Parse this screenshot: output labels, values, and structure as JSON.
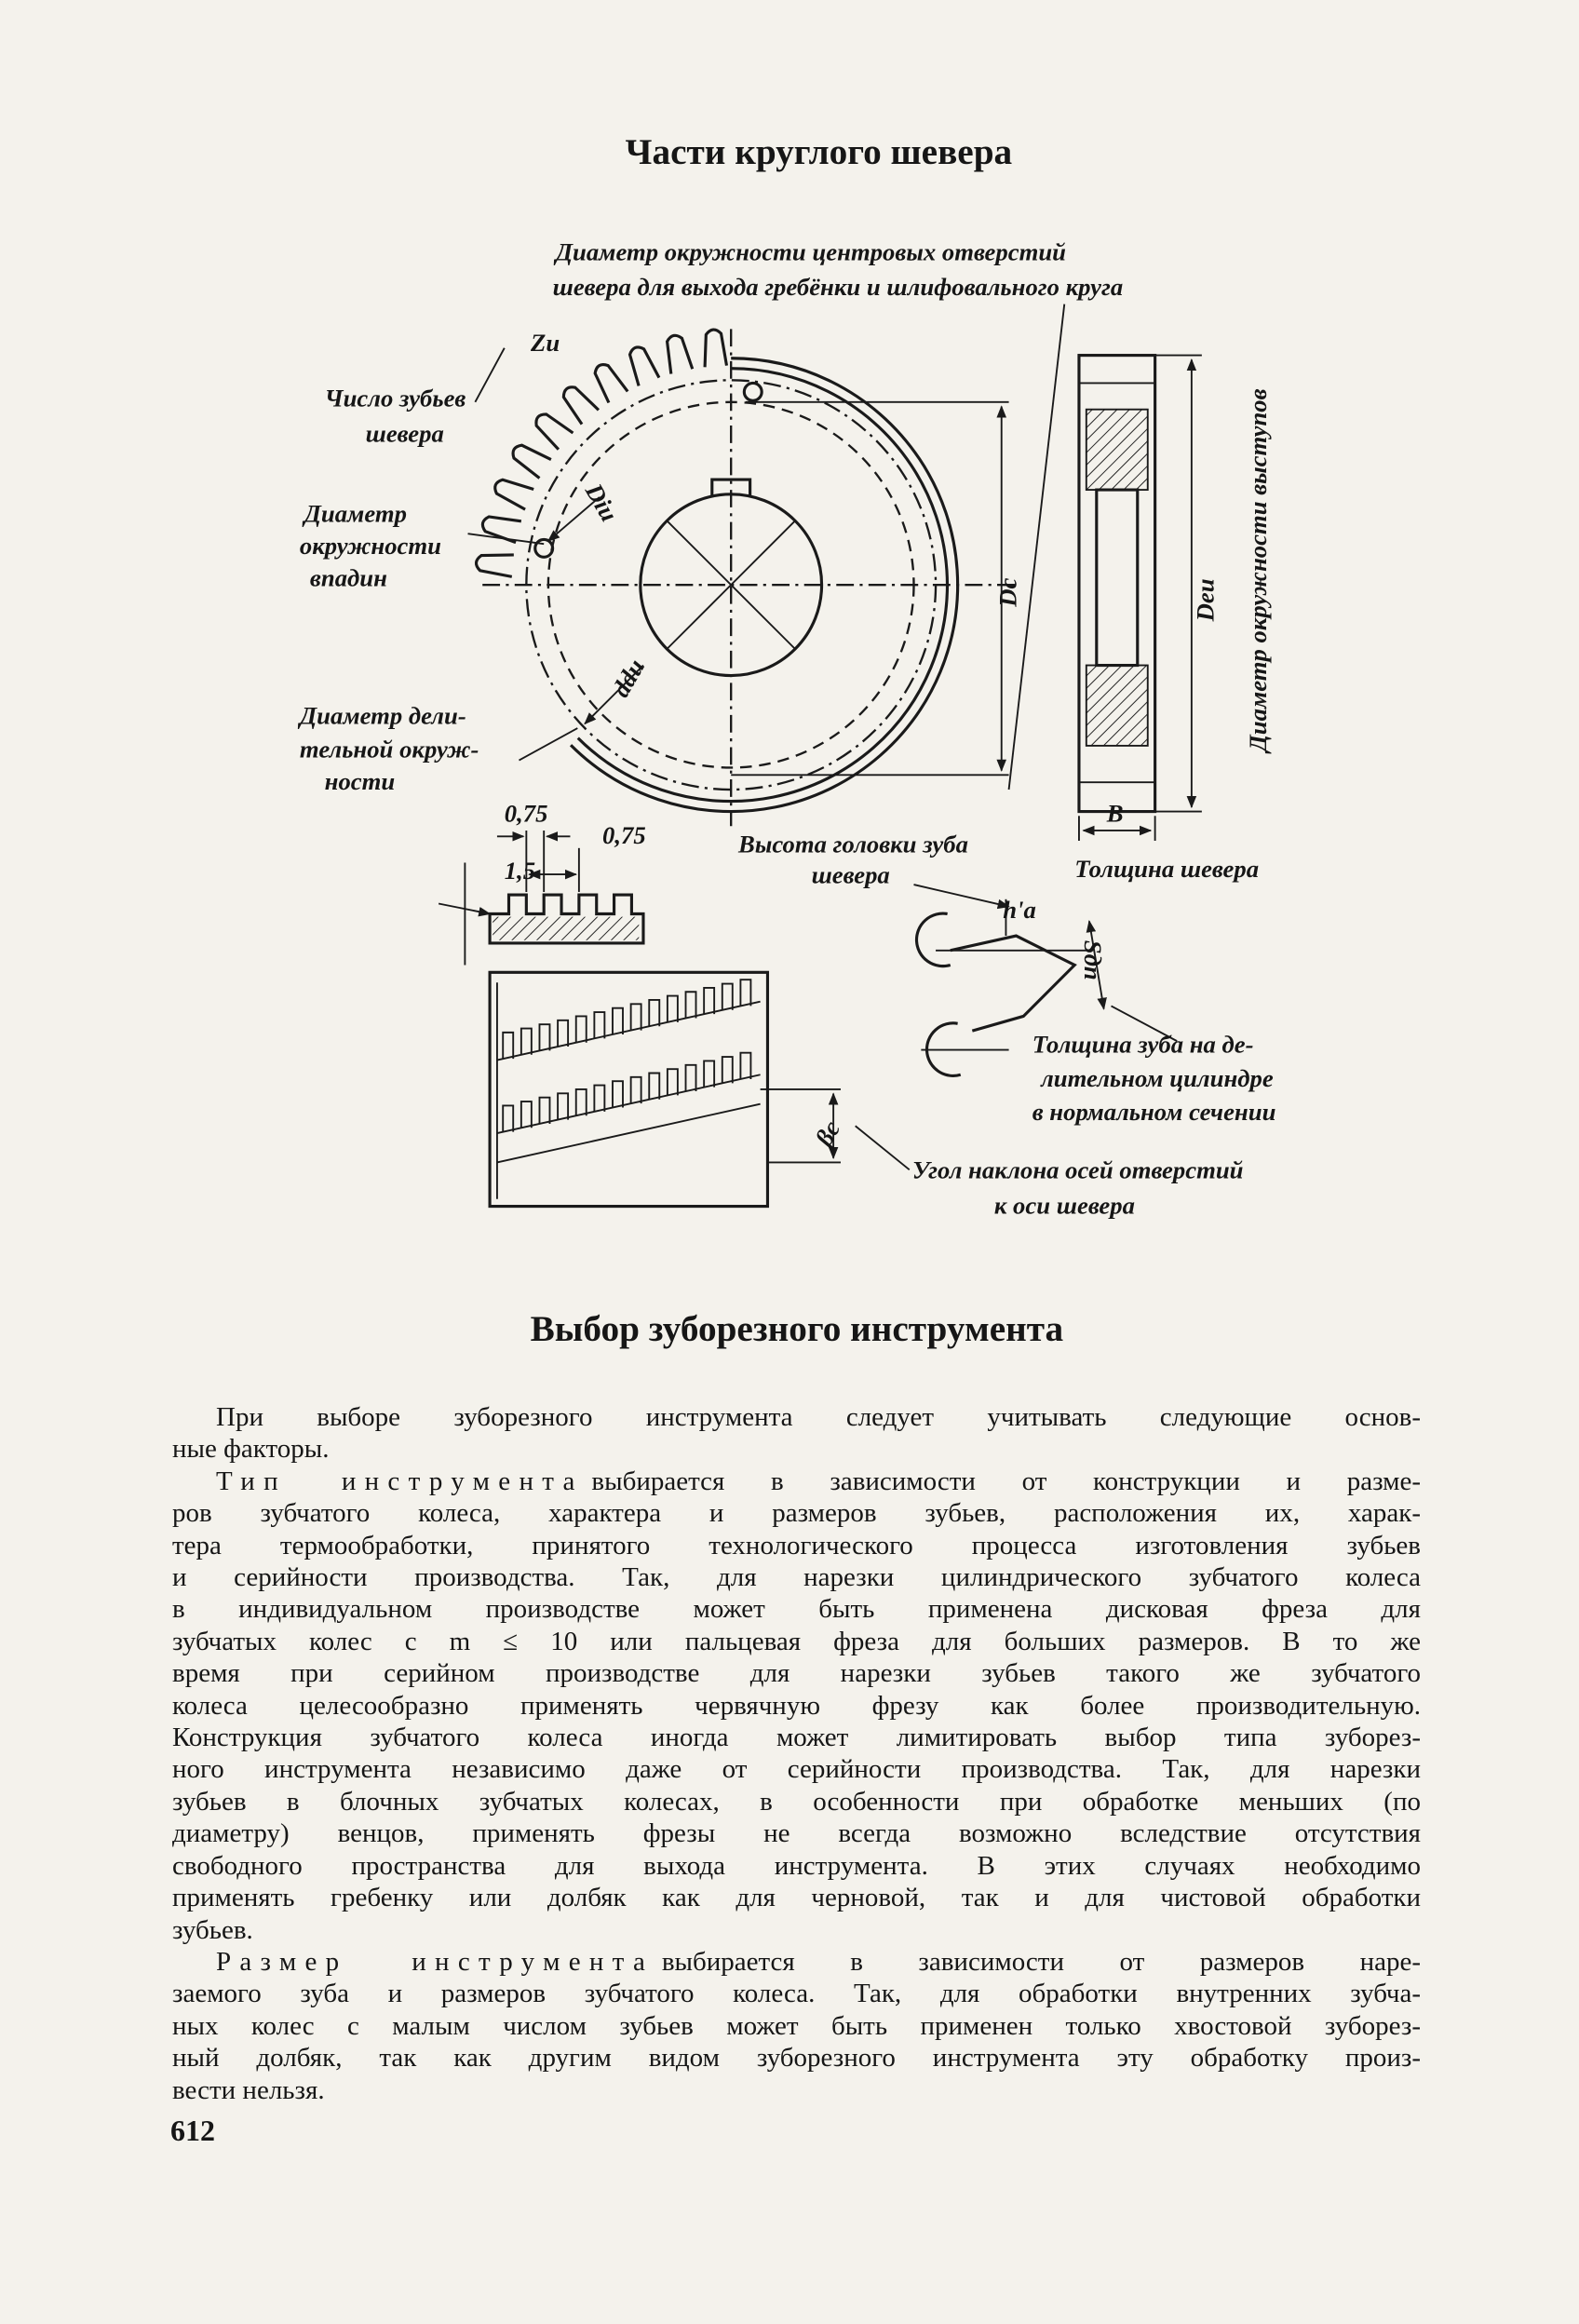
{
  "title": "Части круглого шевера",
  "figure": {
    "labels": [
      "Диаметр окружности центровых отверстий",
      "шевера для выхода гребёнки и шлифовального круга",
      "Zu",
      "Число зубьев",
      "шевера",
      "Диаметр",
      "окружности",
      "впадин",
      "Diu",
      "Dc",
      "Deu",
      "Диаметр окружности выступов",
      "ddu",
      "Диаметр дели-",
      "тельной окруж-",
      "ности",
      "0,75",
      "0,75",
      "1,5",
      "Высота головки зуба",
      "шевера",
      "B",
      "Толщина шевера",
      "h'a",
      "Sдn",
      "Толщина зуба на де-",
      "лительном цилиндре",
      "в нормальном сечении",
      "βc",
      "Угол наклона осей отверстий",
      "к оси шевера"
    ]
  },
  "section": {
    "heading": "Выбор зуборезного инструмента",
    "paragraphs": [
      {
        "lines": [
          "При выборе зуборезного инструмента следует учитывать следующие основ-",
          "ные факторы."
        ]
      },
      {
        "lead": "Тип инструмента",
        "lines": [
          "выбирается в зависимости от конструкции и разме-",
          "ров зубчатого колеса, характера и размеров зубьев, расположения их, харак-",
          "тера термообработки, принятого технологического процесса изготовления зубьев",
          "и серийности производства. Так, для нарезки цилиндрического зубчатого колеса",
          "в индивидуальном производстве может быть применена дисковая фреза для",
          "зубчатых колес с m ≤ 10 или пальцевая фреза для больших размеров. В то же",
          "время при серийном производстве для нарезки зубьев такого же зубчатого",
          "колеса целесообразно применять червячную фрезу как более производительную.",
          "Конструкция зубчатого колеса иногда может лимитировать выбор типа зуборез-",
          "ного инструмента независимо даже от серийности производства. Так, для нарезки",
          "зубьев в блочных зубчатых колесах, в особенности при обработке меньших (по",
          "диаметру) венцов, применять фрезы не всегда возможно вследствие отсутствия",
          "свободного пространства для выхода инструмента. В этих случаях необходимо",
          "применять гребенку или долбяк как для черновой, так и для чистовой обработки",
          "зубьев."
        ]
      },
      {
        "lead": "Размер инструмента",
        "lines": [
          "выбирается в зависимости от размеров наре-",
          "заемого зуба и размеров зубчатого колеса. Так, для обработки внутренних зубча-",
          "ных колес с малым числом зубьев может быть применен только хвостовой зуборез-",
          "ный долбяк, так как другим видом зуборезного инструмента эту обработку произ-",
          "вести нельзя."
        ]
      }
    ]
  },
  "page_number": "612"
}
